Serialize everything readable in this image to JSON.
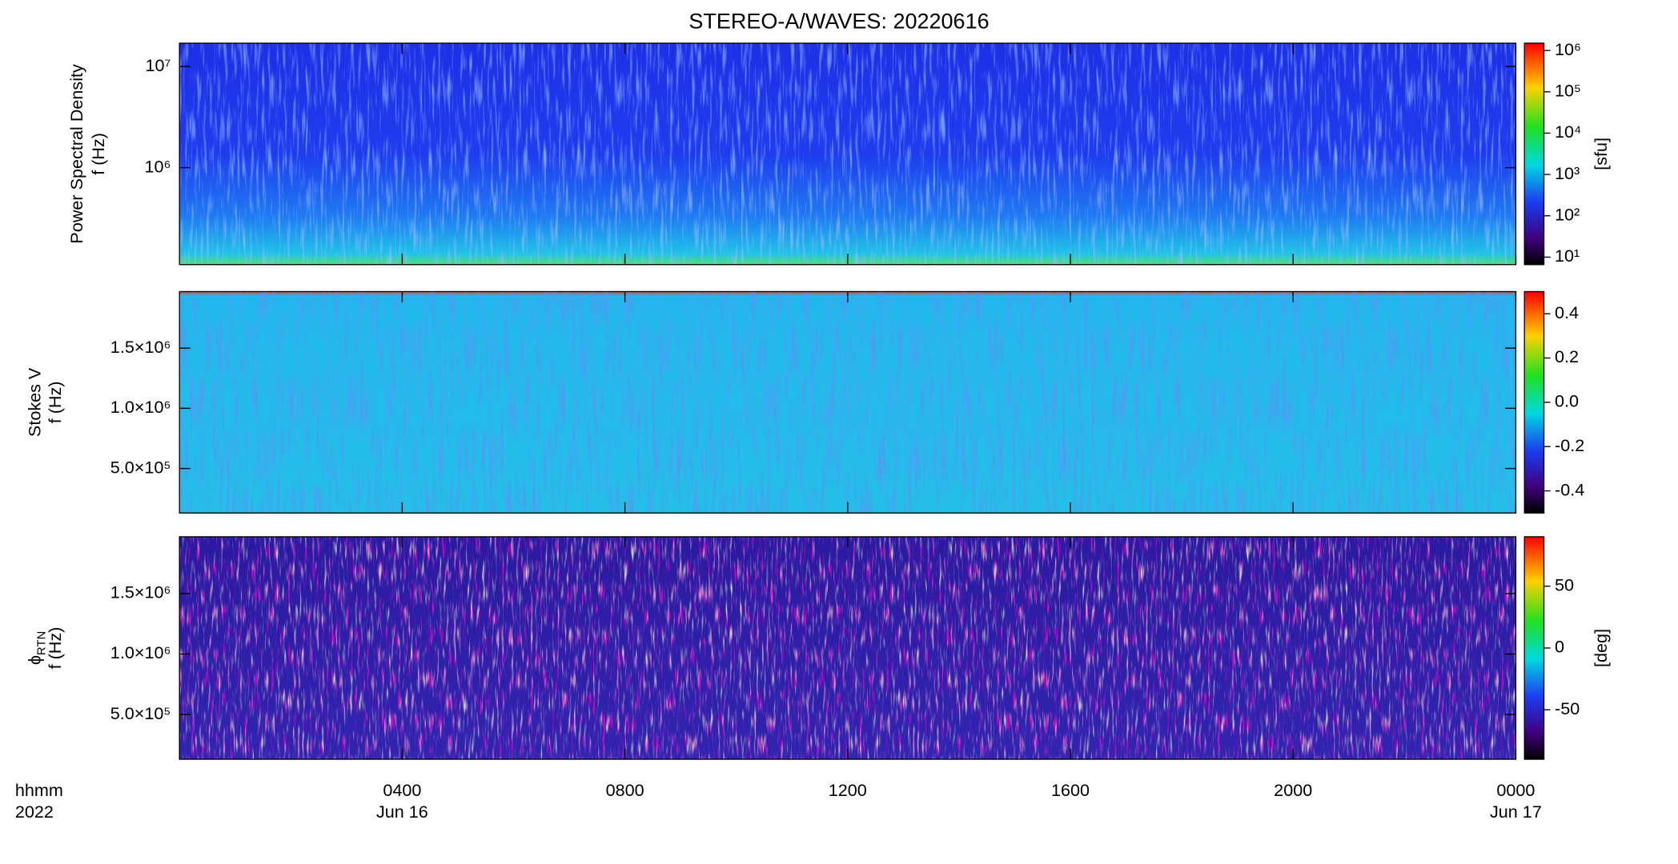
{
  "title": "STEREO-A/WAVES: 20220616",
  "x_axis": {
    "xlim": [
      0,
      24
    ],
    "xticks": [
      {
        "value": 4,
        "label": "0400"
      },
      {
        "value": 8,
        "label": "0800"
      },
      {
        "value": 12,
        "label": "1200"
      },
      {
        "value": 16,
        "label": "1600"
      },
      {
        "value": 20,
        "label": "2000"
      },
      {
        "value": 24,
        "label": "0000"
      }
    ],
    "xlabel": [
      "hhmm",
      "2022"
    ],
    "date_labels": [
      {
        "value": 4,
        "label": "Jun 16"
      },
      {
        "value": 24,
        "label": "Jun 17"
      }
    ]
  },
  "chart_data": [
    {
      "type": "heatmap",
      "ylabel": [
        {
          "text": "Power Spectral Density"
        },
        {
          "text": "f (Hz)"
        }
      ],
      "log_y": true,
      "ylim": [
        110000,
        17000000
      ],
      "yticks": [
        {
          "value": 1000000,
          "label": "10⁶"
        },
        {
          "value": 10000000,
          "label": "10⁷"
        }
      ],
      "colorbar": {
        "log": true,
        "clim": [
          6.6,
          1500000
        ],
        "ticks": [
          {
            "value": 10,
            "label": "10¹"
          },
          {
            "value": 100,
            "label": "10²"
          },
          {
            "value": 1000,
            "label": "10³"
          },
          {
            "value": 10000,
            "label": "10⁴"
          },
          {
            "value": 100000,
            "label": "10⁵"
          },
          {
            "value": 1000000,
            "label": "10⁶"
          }
        ],
        "label": "[sfu]"
      }
    },
    {
      "type": "heatmap",
      "ylabel": [
        {
          "text": "Stokes V"
        },
        {
          "text": "f (Hz)"
        }
      ],
      "log_y": false,
      "ylim": [
        130000,
        1970000
      ],
      "yticks": [
        {
          "value": 500000,
          "label": "5.0×10⁵"
        },
        {
          "value": 1000000,
          "label": "1.0×10⁶"
        },
        {
          "value": 1500000,
          "label": "1.5×10⁶"
        }
      ],
      "colorbar": {
        "log": false,
        "clim": [
          -0.5,
          0.5
        ],
        "ticks": [
          -0.4,
          -0.2,
          {
            "value": 0,
            "label": "0.0"
          },
          0.2,
          0.4
        ]
      }
    },
    {
      "type": "heatmap",
      "ylabel": [
        {
          "text": "ϕ",
          "sub": "RTN"
        },
        {
          "text": "f (Hz)"
        }
      ],
      "log_y": false,
      "ylim": [
        130000,
        1970000
      ],
      "yticks": [
        {
          "value": 500000,
          "label": "5.0×10⁵"
        },
        {
          "value": 1000000,
          "label": "1.0×10⁶"
        },
        {
          "value": 1500000,
          "label": "1.5×10⁶"
        }
      ],
      "colorbar": {
        "log": false,
        "clim": [
          -90,
          90
        ],
        "ticks": [
          -50,
          0,
          50
        ],
        "label": "[deg]"
      }
    }
  ]
}
